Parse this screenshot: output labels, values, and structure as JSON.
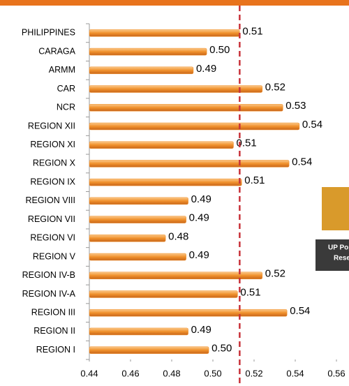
{
  "chart_data": {
    "type": "bar",
    "orientation": "horizontal",
    "categories": [
      "PHILIPPINES",
      "CARAGA",
      "ARMM",
      "CAR",
      "NCR",
      "REGION XII",
      "REGION XI",
      "REGION X",
      "REGION IX",
      "REGION VIII",
      "REGION VII",
      "REGION VI",
      "REGION V",
      "REGION IV-B",
      "REGION IV-A",
      "REGION III",
      "REGION II",
      "REGION I"
    ],
    "values": [
      0.513,
      0.497,
      0.4905,
      0.524,
      0.534,
      0.542,
      0.51,
      0.537,
      0.514,
      0.488,
      0.487,
      0.477,
      0.487,
      0.524,
      0.512,
      0.536,
      0.488,
      0.498
    ],
    "value_labels": [
      "0.51",
      "0.50",
      "0.49",
      "0.52",
      "0.53",
      "0.54",
      "0.51",
      "0.54",
      "0.51",
      "0.49",
      "0.49",
      "0.48",
      "0.49",
      "0.52",
      "0.51",
      "0.54",
      "0.49",
      "0.50"
    ],
    "color": "#f0912c",
    "xlim": [
      0.44,
      0.56
    ],
    "xticks": [
      0.44,
      0.46,
      0.48,
      {
        "value": 0.5,
        "label": "0.50"
      },
      0.52,
      0.54,
      0.56
    ],
    "reference_line": 0.513,
    "reference_color": "#c8323a"
  },
  "logo_text": [
    "UP Pop",
    "Resea"
  ]
}
